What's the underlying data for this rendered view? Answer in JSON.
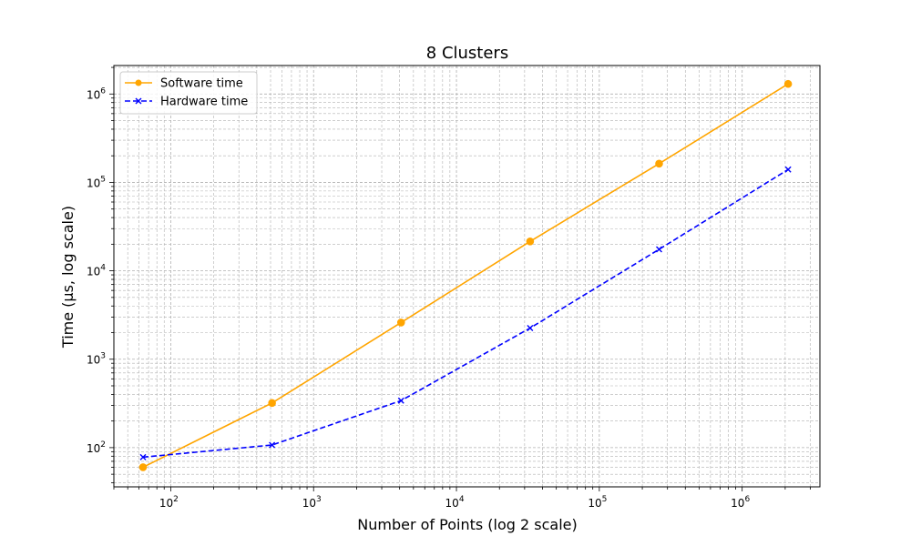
{
  "chart_data": {
    "type": "line",
    "title": "8 Clusters",
    "xlabel": "Number of Points (log 2 scale)",
    "ylabel": "Time (µs, log scale)",
    "x_scale": "log",
    "y_scale": "log",
    "xlim": [
      40,
      3500000
    ],
    "ylim": [
      36,
      2100000
    ],
    "x_ticks": [
      {
        "value": 100,
        "base": "10",
        "exp": "2"
      },
      {
        "value": 1000,
        "base": "10",
        "exp": "3"
      },
      {
        "value": 10000,
        "base": "10",
        "exp": "4"
      },
      {
        "value": 100000,
        "base": "10",
        "exp": "5"
      },
      {
        "value": 1000000,
        "base": "10",
        "exp": "6"
      }
    ],
    "y_ticks": [
      {
        "value": 100,
        "base": "10",
        "exp": "2"
      },
      {
        "value": 1000,
        "base": "10",
        "exp": "3"
      },
      {
        "value": 10000,
        "base": "10",
        "exp": "4"
      },
      {
        "value": 100000,
        "base": "10",
        "exp": "5"
      },
      {
        "value": 1000000,
        "base": "10",
        "exp": "6"
      }
    ],
    "grid": true,
    "legend_position": "upper-left",
    "x": [
      64,
      512,
      4096,
      32768,
      262144,
      2097152
    ],
    "series": [
      {
        "name": "Software time",
        "values": [
          60,
          320,
          2600,
          21500,
          163000,
          1300000
        ],
        "color": "#ffa500",
        "marker": "circle",
        "line_style": "solid"
      },
      {
        "name": "Hardware time",
        "values": [
          78,
          107,
          340,
          2250,
          17500,
          140000
        ],
        "color": "#0000ff",
        "marker": "x",
        "line_style": "dashed"
      }
    ]
  }
}
